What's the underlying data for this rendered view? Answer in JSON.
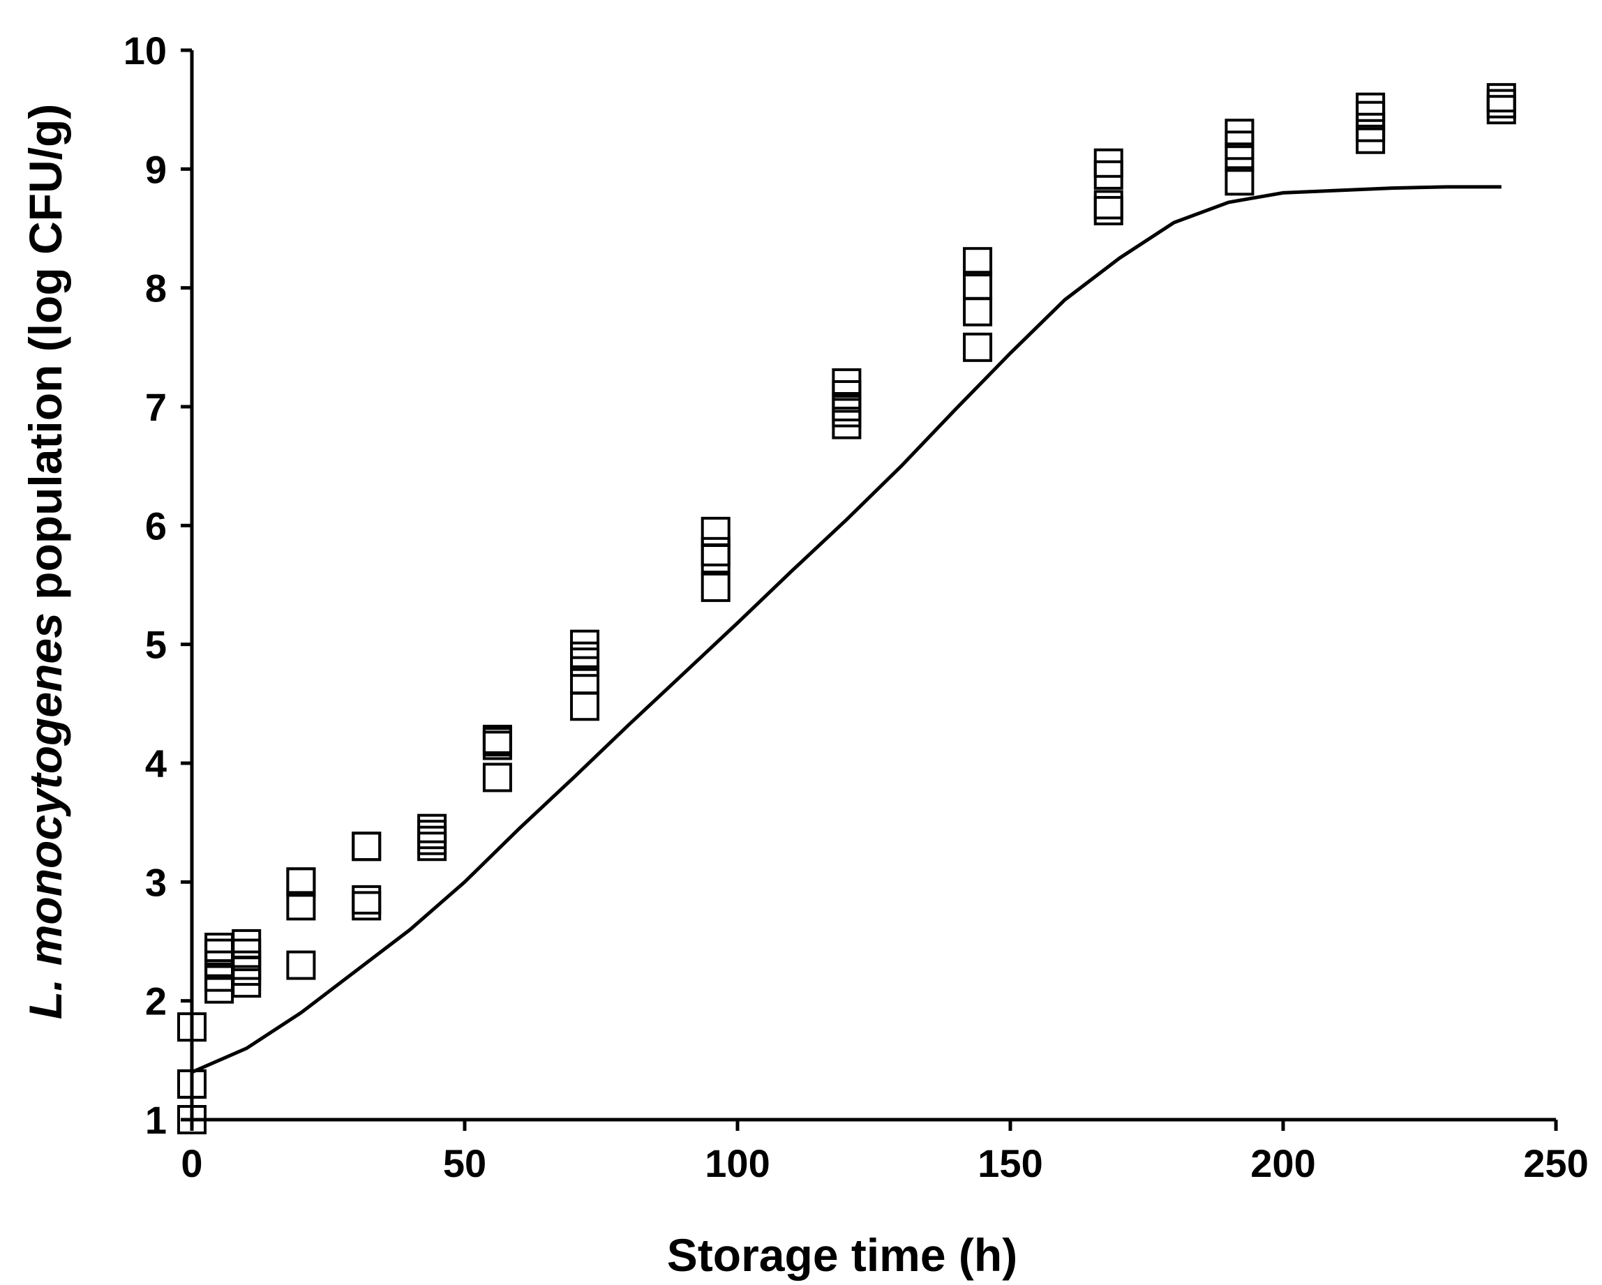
{
  "chart_data": {
    "type": "scatter",
    "xlabel": "Storage time (h)",
    "ylabel_italic": "L. monocytogenes",
    "ylabel_rest": " population (log CFU/g)",
    "xlim": [
      0,
      250
    ],
    "ylim": [
      1,
      10
    ],
    "xticks": [
      0,
      50,
      100,
      150,
      200,
      250
    ],
    "yticks": [
      1,
      2,
      3,
      4,
      5,
      6,
      7,
      8,
      9,
      10
    ],
    "grid": false,
    "legend": "none",
    "series": [
      {
        "type": "scatter",
        "marker": "open-square",
        "points": [
          [
            0,
            1.0
          ],
          [
            0,
            1.0
          ],
          [
            0,
            1.3
          ],
          [
            0,
            1.3
          ],
          [
            0,
            1.78
          ],
          [
            5,
            2.1
          ],
          [
            5,
            2.2
          ],
          [
            5,
            2.3
          ],
          [
            5,
            2.4
          ],
          [
            5,
            2.45
          ],
          [
            10,
            2.15
          ],
          [
            10,
            2.25
          ],
          [
            10,
            2.3
          ],
          [
            10,
            2.4
          ],
          [
            10,
            2.48
          ],
          [
            20,
            2.3
          ],
          [
            20,
            2.8
          ],
          [
            20,
            3.0
          ],
          [
            20,
            3.0
          ],
          [
            32,
            2.8
          ],
          [
            32,
            2.85
          ],
          [
            32,
            3.3
          ],
          [
            32,
            3.3
          ],
          [
            44,
            3.3
          ],
          [
            44,
            3.35
          ],
          [
            44,
            3.4
          ],
          [
            44,
            3.45
          ],
          [
            56,
            3.88
          ],
          [
            56,
            4.15
          ],
          [
            56,
            4.18
          ],
          [
            56,
            4.2
          ],
          [
            72,
            4.48
          ],
          [
            72,
            4.7
          ],
          [
            72,
            4.85
          ],
          [
            72,
            4.9
          ],
          [
            72,
            5.0
          ],
          [
            96,
            5.48
          ],
          [
            96,
            5.72
          ],
          [
            96,
            5.78
          ],
          [
            96,
            5.95
          ],
          [
            120,
            6.85
          ],
          [
            120,
            6.95
          ],
          [
            120,
            7.0
          ],
          [
            120,
            7.1
          ],
          [
            120,
            7.2
          ],
          [
            144,
            7.5
          ],
          [
            144,
            7.8
          ],
          [
            144,
            8.02
          ],
          [
            144,
            8.22
          ],
          [
            168,
            8.65
          ],
          [
            168,
            8.7
          ],
          [
            168,
            8.95
          ],
          [
            168,
            9.05
          ],
          [
            192,
            8.9
          ],
          [
            192,
            9.1
          ],
          [
            192,
            9.2
          ],
          [
            192,
            9.3
          ],
          [
            216,
            9.25
          ],
          [
            216,
            9.35
          ],
          [
            216,
            9.45
          ],
          [
            216,
            9.52
          ],
          [
            240,
            9.5
          ],
          [
            240,
            9.55
          ],
          [
            240,
            9.6
          ]
        ]
      },
      {
        "type": "line",
        "style": "solid",
        "points": [
          [
            0,
            1.4
          ],
          [
            10,
            1.6
          ],
          [
            20,
            1.9
          ],
          [
            30,
            2.25
          ],
          [
            40,
            2.6
          ],
          [
            50,
            3.0
          ],
          [
            60,
            3.45
          ],
          [
            70,
            3.88
          ],
          [
            80,
            4.32
          ],
          [
            90,
            4.75
          ],
          [
            100,
            5.18
          ],
          [
            110,
            5.62
          ],
          [
            120,
            6.05
          ],
          [
            130,
            6.5
          ],
          [
            140,
            6.98
          ],
          [
            150,
            7.45
          ],
          [
            160,
            7.9
          ],
          [
            170,
            8.25
          ],
          [
            180,
            8.55
          ],
          [
            190,
            8.72
          ],
          [
            200,
            8.8
          ],
          [
            210,
            8.82
          ],
          [
            220,
            8.84
          ],
          [
            230,
            8.85
          ],
          [
            240,
            8.85
          ]
        ]
      }
    ]
  }
}
